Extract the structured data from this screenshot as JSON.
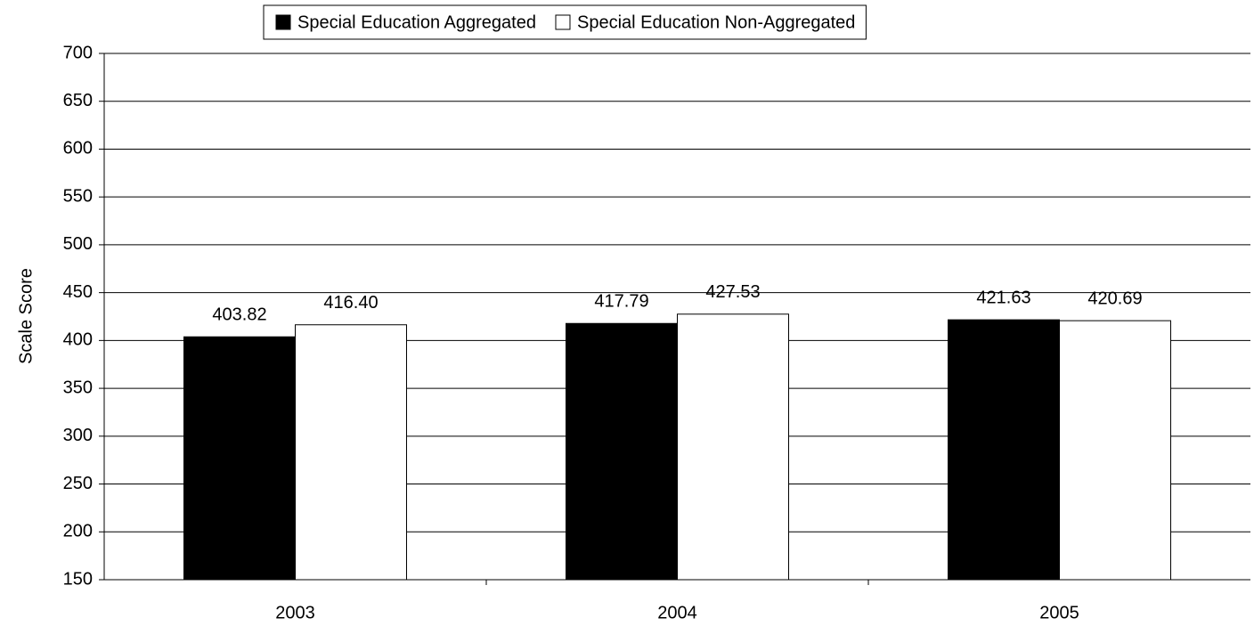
{
  "chart_data": {
    "type": "bar",
    "y_label": "Scale Score",
    "categories": [
      "2003",
      "2004",
      "2005"
    ],
    "series": [
      {
        "name": "Special Education Aggregated",
        "color": "#000000",
        "values": [
          403.82,
          417.79,
          421.63
        ],
        "value_labels": [
          "403.82",
          "417.79",
          "421.63"
        ]
      },
      {
        "name": "Special Education Non-Aggregated",
        "color": "#ffffff",
        "values": [
          416.4,
          427.53,
          420.69
        ],
        "value_labels": [
          "416.40",
          "427.53",
          "420.69"
        ]
      }
    ],
    "ylim": [
      150,
      700
    ],
    "yticks": [
      150,
      200,
      250,
      300,
      350,
      400,
      450,
      500,
      550,
      600,
      650,
      700
    ],
    "grid": true,
    "legend": "top"
  }
}
